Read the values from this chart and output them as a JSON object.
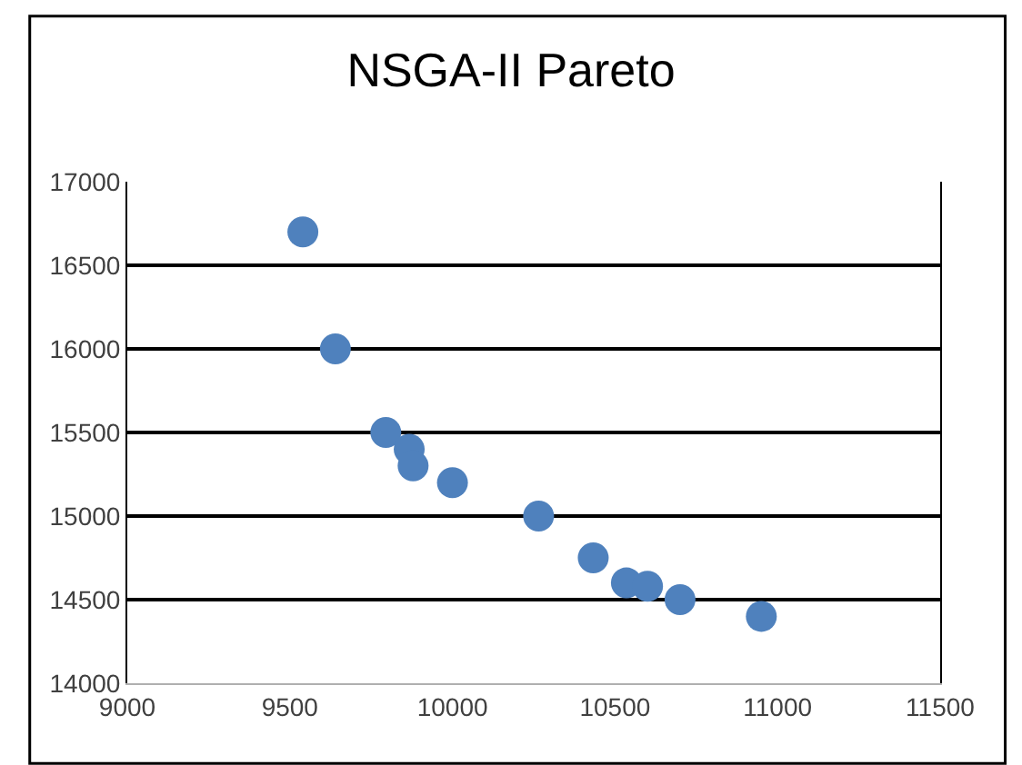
{
  "chart_data": {
    "type": "scatter",
    "title": "NSGA-II Pareto",
    "x": [
      9540,
      9640,
      9795,
      9867,
      9879,
      10000,
      10265,
      10433,
      10535,
      10600,
      10700,
      10950
    ],
    "series": [
      {
        "color": "#4f81bd",
        "values": [
          16700,
          16000,
          15500,
          15400,
          15300,
          15200,
          15000,
          14750,
          14600,
          14580,
          14500,
          14400
        ]
      }
    ],
    "xlim": [
      9000,
      11500
    ],
    "xticks": [
      9000,
      9500,
      10000,
      10500,
      11000,
      11500
    ],
    "ylim": [
      14000,
      17000
    ],
    "yticks": [
      14000,
      14500,
      15000,
      15500,
      16000,
      16500,
      17000
    ],
    "grid": "y",
    "marker": "circle",
    "legend": false
  }
}
